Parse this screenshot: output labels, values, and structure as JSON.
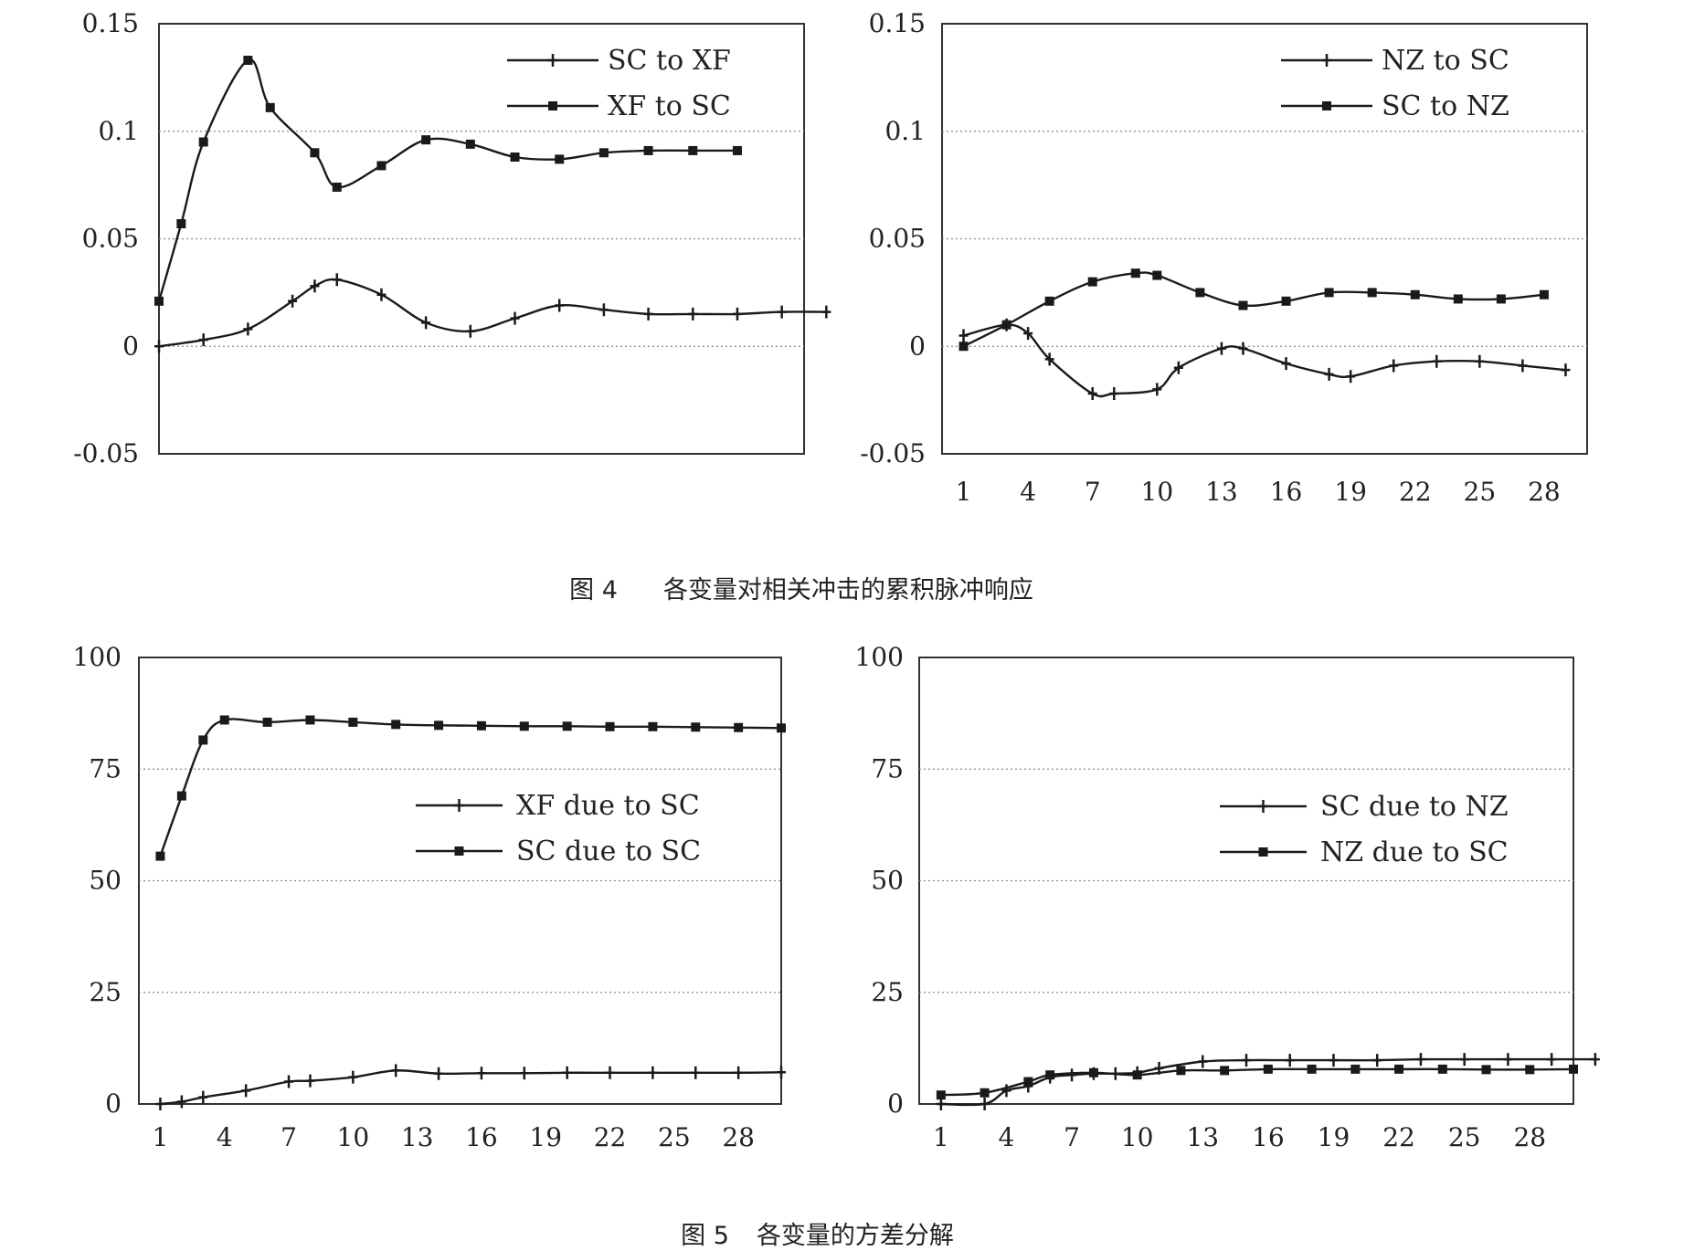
{
  "figures": [
    {
      "number": "图 4",
      "title": "各变量对相关冲击的累积脉冲响应"
    },
    {
      "number": "图 5",
      "title": "各变量的方差分解"
    }
  ],
  "colors": {
    "line": "#1a1a1a",
    "grid": "#888888",
    "frame": "#333333"
  },
  "chart_data": [
    {
      "type": "line",
      "figure": "图 4",
      "panel": "top-left",
      "title": "",
      "xlabel": "",
      "ylabel": "",
      "ylim": [
        -0.05,
        0.15
      ],
      "yticks": [
        "0.15",
        "0.1",
        "0.05",
        "0",
        "-0.05"
      ],
      "xlim": [
        1,
        30
      ],
      "xticks": [],
      "grid": true,
      "legend_position": "top-right",
      "series": [
        {
          "name": "SC to XF",
          "marker": "plus",
          "x": [
            1,
            3,
            5,
            7,
            8,
            9,
            11,
            13,
            15,
            17,
            19,
            21,
            23,
            25,
            27,
            29,
            31
          ],
          "values": [
            0,
            0.003,
            0.008,
            0.021,
            0.028,
            0.031,
            0.024,
            0.011,
            0.007,
            0.013,
            0.019,
            0.017,
            0.015,
            0.015,
            0.015,
            0.016,
            0.016
          ]
        },
        {
          "name": "XF to SC",
          "marker": "square",
          "x": [
            1,
            2,
            3,
            5,
            6,
            8,
            9,
            11,
            13,
            15,
            17,
            19,
            21,
            23,
            25,
            27
          ],
          "values": [
            0.021,
            0.057,
            0.095,
            0.133,
            0.111,
            0.09,
            0.074,
            0.084,
            0.096,
            0.094,
            0.088,
            0.087,
            0.09,
            0.091,
            0.091,
            0.091
          ]
        }
      ]
    },
    {
      "type": "line",
      "figure": "图 4",
      "panel": "top-right",
      "title": "",
      "xlabel": "",
      "ylabel": "",
      "ylim": [
        -0.05,
        0.15
      ],
      "yticks": [
        "0.15",
        "0.1",
        "0.05",
        "0",
        "-0.05"
      ],
      "xlim": [
        0,
        30
      ],
      "xticks": [
        "1",
        "4",
        "7",
        "10",
        "13",
        "16",
        "19",
        "22",
        "25",
        "28"
      ],
      "grid": true,
      "legend_position": "top-right",
      "series": [
        {
          "name": "NZ to SC",
          "marker": "plus",
          "x": [
            1,
            3,
            4,
            5,
            7,
            8,
            10,
            11,
            13,
            14,
            16,
            18,
            19,
            21,
            23,
            25,
            27,
            29
          ],
          "values": [
            0.005,
            0.01,
            0.006,
            -0.006,
            -0.022,
            -0.022,
            -0.02,
            -0.01,
            -0.001,
            -0.001,
            -0.008,
            -0.013,
            -0.014,
            -0.009,
            -0.007,
            -0.007,
            -0.009,
            -0.011
          ]
        },
        {
          "name": "SC to NZ",
          "marker": "square",
          "x": [
            1,
            3,
            5,
            7,
            9,
            10,
            12,
            14,
            16,
            18,
            20,
            22,
            24,
            26,
            28
          ],
          "values": [
            0,
            0.01,
            0.021,
            0.03,
            0.034,
            0.033,
            0.025,
            0.019,
            0.021,
            0.025,
            0.025,
            0.024,
            0.022,
            0.022,
            0.024
          ]
        }
      ]
    },
    {
      "type": "line",
      "figure": "图 5",
      "panel": "bottom-left",
      "title": "",
      "xlabel": "",
      "ylabel": "",
      "ylim": [
        0,
        100
      ],
      "yticks": [
        "100",
        "75",
        "50",
        "25",
        "0"
      ],
      "xlim": [
        0,
        30
      ],
      "xticks": [
        "1",
        "4",
        "7",
        "10",
        "13",
        "16",
        "19",
        "22",
        "25",
        "28"
      ],
      "grid": true,
      "legend_position": "center-right",
      "series": [
        {
          "name": "XF due to SC",
          "marker": "plus",
          "x": [
            1,
            2,
            3,
            5,
            7,
            8,
            10,
            12,
            14,
            16,
            18,
            20,
            22,
            24,
            26,
            28,
            30
          ],
          "values": [
            0,
            0.5,
            1.5,
            3,
            5,
            5.2,
            6,
            7.5,
            6.8,
            6.9,
            6.9,
            7,
            7,
            7,
            7,
            7,
            7.1
          ]
        },
        {
          "name": "SC due to SC",
          "marker": "square",
          "x": [
            1,
            2,
            3,
            4,
            6,
            8,
            10,
            12,
            14,
            16,
            18,
            20,
            22,
            24,
            26,
            28,
            30
          ],
          "values": [
            55.5,
            69,
            81.5,
            86,
            85.5,
            86,
            85.5,
            85,
            84.8,
            84.7,
            84.6,
            84.6,
            84.5,
            84.5,
            84.4,
            84.3,
            84.2
          ]
        }
      ]
    },
    {
      "type": "line",
      "figure": "图 5",
      "panel": "bottom-right",
      "title": "",
      "xlabel": "",
      "ylabel": "",
      "ylim": [
        0,
        100
      ],
      "yticks": [
        "100",
        "75",
        "50",
        "25",
        "0"
      ],
      "xlim": [
        0,
        30
      ],
      "xticks": [
        "1",
        "4",
        "7",
        "10",
        "13",
        "16",
        "19",
        "22",
        "25",
        "28"
      ],
      "grid": true,
      "legend_position": "center-right",
      "series": [
        {
          "name": "SC due to NZ",
          "marker": "plus",
          "x": [
            1,
            3,
            4,
            5,
            6,
            7,
            8,
            9,
            10,
            11,
            13,
            15,
            17,
            19,
            21,
            23,
            25,
            27,
            29,
            31
          ],
          "values": [
            0,
            0,
            3,
            4,
            6,
            6.5,
            6.8,
            6.8,
            7,
            8,
            9.5,
            9.8,
            9.8,
            9.8,
            9.8,
            10,
            10,
            10,
            10,
            10
          ]
        },
        {
          "name": "NZ due to SC",
          "marker": "square",
          "x": [
            1,
            3,
            5,
            6,
            8,
            10,
            12,
            14,
            16,
            18,
            20,
            22,
            24,
            26,
            28,
            30
          ],
          "values": [
            2,
            2.5,
            5,
            6.5,
            7,
            6.5,
            7.5,
            7.5,
            7.8,
            7.8,
            7.8,
            7.8,
            7.8,
            7.7,
            7.7,
            7.8
          ]
        }
      ]
    }
  ]
}
